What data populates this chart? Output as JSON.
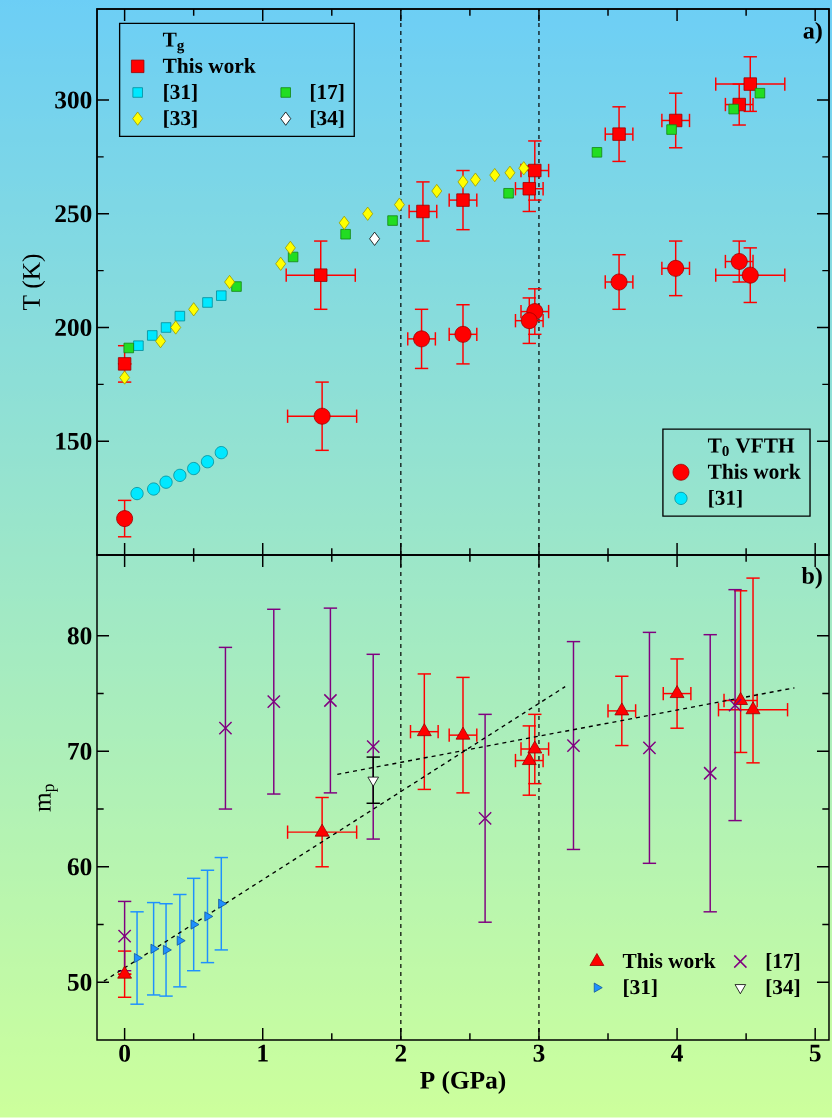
{
  "chart_data": [
    {
      "type": "scatter",
      "ylabel": "T (K)",
      "legend_title": "T$_{g}$",
      "legend": "top left",
      "tick_labels": "y",
      "annotations": [
        "a)"
      ],
      "xlim": [
        -0.2,
        5.1
      ],
      "ylim": [
        100,
        340
      ],
      "xticks": [
        0,
        1,
        2,
        3,
        4,
        5
      ],
      "yticks": [
        150,
        200,
        250,
        300
      ],
      "ref_lines": [
        {
          "axis": "x",
          "value": 2,
          "color": "#000000",
          "line_style": "dashed"
        },
        {
          "axis": "x",
          "value": 3,
          "color": "#000000",
          "line_style": "dashed"
        }
      ],
      "series": [
        {
          "name": "This work",
          "color": "#ff0000",
          "marker": "square",
          "x": [
            0,
            1.42,
            2.16,
            2.45,
            2.97,
            2.93,
            3.58,
            3.99,
            4.45,
            4.53
          ],
          "values": [
            184,
            223,
            251,
            256,
            269,
            261,
            285,
            291,
            298,
            307
          ],
          "errors": [
            8,
            15,
            13,
            13,
            13,
            10,
            12,
            12,
            9,
            12
          ],
          "xerrors": [
            null,
            0.25,
            0.1,
            0.1,
            0.1,
            0.1,
            0.1,
            0.1,
            0.1,
            0.25
          ]
        },
        {
          "name": "[31]",
          "color": "#00e8ff",
          "marker": "square",
          "x": [
            0.1,
            0.2,
            0.3,
            0.4,
            0.5,
            0.6,
            0.7
          ],
          "values": [
            192,
            196.5,
            200,
            205,
            null,
            211,
            214
          ]
        },
        {
          "name": "[17]",
          "color": "#22dd22",
          "marker": "square",
          "x": [
            0.03,
            0.81,
            1.22,
            1.6,
            1.94,
            2.78,
            3.42,
            3.96,
            4.41,
            4.6
          ],
          "values": [
            191,
            218,
            231,
            241,
            247,
            259,
            277,
            287,
            296,
            303
          ]
        },
        {
          "name": "[33]",
          "color": "#ffff00",
          "marker": "diamond",
          "x": [
            0,
            0.26,
            0.37,
            0.5,
            0.76,
            1.13,
            1.2,
            1.59,
            1.76,
            1.99,
            2.26,
            2.45,
            2.54,
            2.68,
            2.79,
            2.89
          ],
          "values": [
            178,
            194,
            200,
            208,
            220,
            228,
            235,
            246,
            250,
            254,
            260,
            264,
            265,
            267,
            268,
            270
          ]
        },
        {
          "name": "[34]",
          "color": "#ffffff",
          "marker": "diamond",
          "x": [
            1.81
          ],
          "values": [
            239
          ]
        }
      ]
    },
    {
      "type": "scatter",
      "legend_title": "T$_{0}$ VFTH",
      "legend": "bottom right",
      "tick_labels": false,
      "xlim": [
        -0.2,
        5.1
      ],
      "ylim": [
        100,
        340
      ],
      "series": [
        {
          "name": "This work",
          "color": "#ff0000",
          "marker": "circle",
          "x": [
            0,
            1.43,
            2.15,
            2.45,
            2.97,
            2.93,
            3.58,
            3.99,
            4.45,
            4.53
          ],
          "values": [
            116,
            161,
            195,
            197,
            207,
            203,
            220,
            226,
            229,
            223
          ],
          "errors": [
            8,
            15,
            13,
            13,
            10,
            10,
            12,
            12,
            9,
            12
          ],
          "xerrors": [
            null,
            0.25,
            0.1,
            0.1,
            0.1,
            0.1,
            0.1,
            0.1,
            0.1,
            0.25
          ]
        },
        {
          "name": "[31]",
          "color": "#00e8ff",
          "marker": "circle",
          "x": [
            0.09,
            0.21,
            0.3,
            0.4,
            0.5,
            0.6,
            0.7
          ],
          "values": [
            127,
            129,
            132,
            135,
            138,
            141,
            145
          ]
        }
      ]
    },
    {
      "type": "scatter",
      "xlabel": "P (GPa)",
      "ylabel": "m$_{p}$",
      "legend": "bottom right",
      "annotations": [
        "b)"
      ],
      "xlim": [
        -0.2,
        5.1
      ],
      "ylim": [
        45,
        87
      ],
      "xticks": [
        0,
        1,
        2,
        3,
        4,
        5
      ],
      "yticks": [
        50,
        60,
        70,
        80
      ],
      "ref_lines": [
        {
          "axis": "x",
          "value": 2,
          "color": "#000000",
          "line_style": "dashed"
        },
        {
          "axis": "x",
          "value": 3,
          "color": "#000000",
          "line_style": "dashed"
        }
      ],
      "series": [
        {
          "name": "This work",
          "color": "#ff0000",
          "marker": "triangle",
          "x": [
            0,
            1.43,
            2.17,
            2.45,
            2.97,
            2.93,
            3.6,
            4,
            4.46,
            4.55
          ],
          "values": [
            50.7,
            63,
            71.7,
            71.4,
            70.2,
            69.2,
            73.5,
            75,
            74.4,
            73.6
          ],
          "errors": [
            2,
            3,
            5,
            5,
            3,
            3,
            3,
            3,
            [
              69.9,
              83.9
            ],
            [
              69,
              85
            ]
          ],
          "xerrors": [
            null,
            0.25,
            0.1,
            0.1,
            0.1,
            0.1,
            0.1,
            0.1,
            0.12,
            0.25
          ]
        },
        {
          "name": "[17]",
          "color": "#800080",
          "marker": "cross",
          "x": [
            0,
            0.73,
            1.08,
            1.49,
            1.8,
            2.61,
            3.25,
            3.8,
            4.24,
            4.42
          ],
          "values": [
            54,
            72,
            74.3,
            74.4,
            70.4,
            64.2,
            70.5,
            70.3,
            68.1,
            74
          ],
          "errors": [
            3,
            7,
            8,
            8,
            8,
            9,
            9,
            10,
            12,
            10
          ]
        },
        {
          "name": "[31]",
          "color": "#1e90ff",
          "marker": "triangle right",
          "x": [
            0.09,
            0.21,
            0.3,
            0.4,
            0.5,
            0.6,
            0.7
          ],
          "values": [
            52.1,
            52.9,
            52.8,
            53.6,
            55,
            55.7,
            56.8
          ],
          "errors": [
            4,
            4,
            4,
            4,
            4,
            4,
            4
          ]
        },
        {
          "name": "[34]",
          "color": "#ffffff",
          "marker": "triangle down",
          "x": [
            1.8
          ],
          "values": [
            67.5
          ],
          "errors": [
            2
          ]
        },
        {
          "type": "line",
          "color": "#000000",
          "line_style": "dashed",
          "marker": "none",
          "x": [
            -0.15,
            3.19
          ],
          "values": [
            50.1,
            75.6
          ]
        },
        {
          "type": "line",
          "color": "#000000",
          "line_style": "dashed",
          "marker": "none",
          "x": [
            1.54,
            4.85
          ],
          "values": [
            68,
            75.5
          ]
        }
      ]
    }
  ]
}
